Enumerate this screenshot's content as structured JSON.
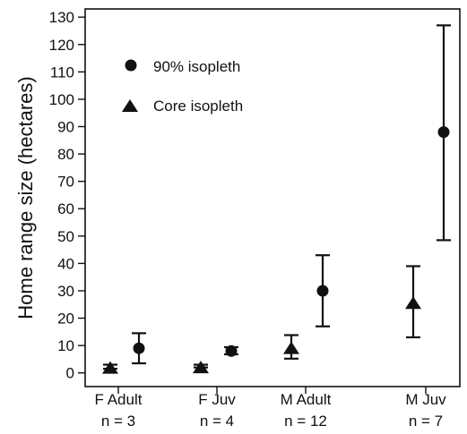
{
  "chart_data": {
    "type": "scatter",
    "title": "",
    "xlabel": "",
    "ylabel": "Home range size (hectares)",
    "ylim": [
      -5,
      133
    ],
    "yticks": [
      0,
      10,
      20,
      30,
      40,
      50,
      60,
      70,
      80,
      90,
      100,
      110,
      120,
      130
    ],
    "grid": false,
    "legend_position": "top-left",
    "categories": [
      "F Adult",
      "F Juv",
      "M Adult",
      "M Juv"
    ],
    "sample_sizes": [
      "n = 3",
      "n = 4",
      "n = 12",
      "n = 7"
    ],
    "series": [
      {
        "name": "90% isopleth",
        "marker": "circle",
        "points": [
          {
            "x": "F Adult",
            "y": 9,
            "low": 3.5,
            "high": 14.5
          },
          {
            "x": "F Juv",
            "y": 8,
            "low": 6.8,
            "high": 9.4
          },
          {
            "x": "M Adult",
            "y": 30,
            "low": 17,
            "high": 43
          },
          {
            "x": "M Juv",
            "y": 88,
            "low": 48.5,
            "high": 127
          }
        ]
      },
      {
        "name": "Core isopleth",
        "marker": "triangle",
        "points": [
          {
            "x": "F Adult",
            "y": 2.3,
            "low": 1.5,
            "high": 3.0
          },
          {
            "x": "F Juv",
            "y": 2.5,
            "low": 2.0,
            "high": 3.0
          },
          {
            "x": "M Adult",
            "y": 9.5,
            "low": 5.2,
            "high": 13.8
          },
          {
            "x": "M Juv",
            "y": 26,
            "low": 13,
            "high": 39
          }
        ]
      }
    ],
    "colors": {
      "marker": "#111111",
      "axis": "#111111"
    }
  }
}
